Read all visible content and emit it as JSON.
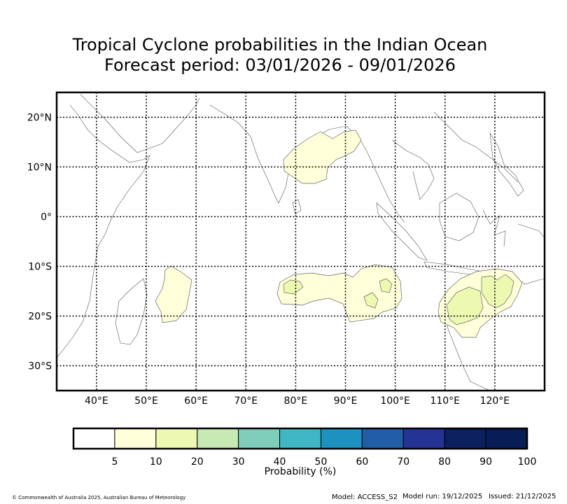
{
  "title": {
    "line1": "Tropical Cyclone probabilities in the Indian Ocean",
    "line2": "Forecast period: 03/01/2026 - 09/01/2026"
  },
  "map": {
    "lon_range": [
      32,
      130
    ],
    "lat_range": [
      -35,
      25
    ],
    "lon_ticks": [
      "40°E",
      "50°E",
      "60°E",
      "70°E",
      "80°E",
      "90°E",
      "100°E",
      "110°E",
      "120°E"
    ],
    "lat_ticks": [
      "20°N",
      "10°N",
      "0°",
      "10°S",
      "20°S",
      "30°S"
    ],
    "grid": "dotted",
    "probability_areas": [
      {
        "region": "Bay of Bengal",
        "level": "5-10"
      },
      {
        "region": "South-west Indian Ocean (east of Madagascar)",
        "level": "5-10"
      },
      {
        "region": "Central south Indian Ocean",
        "level": "5-10"
      },
      {
        "region": "Central south Indian Ocean (embedded)",
        "level": "10-20"
      },
      {
        "region": "Off north-west Australia",
        "level": "5-10"
      },
      {
        "region": "Off north-west Australia (embedded)",
        "level": "10-20"
      }
    ]
  },
  "colorbar": {
    "label": "Probability (%)",
    "tick_labels": [
      "5",
      "10",
      "20",
      "30",
      "40",
      "50",
      "60",
      "70",
      "80",
      "90",
      "100"
    ],
    "colors": [
      "#ffffff",
      "#ffffd9",
      "#edf8b1",
      "#c7e9b4",
      "#7fcdbb",
      "#41b6c4",
      "#1d91c0",
      "#225ea8",
      "#253494",
      "#0c1f5e",
      "#081d58"
    ]
  },
  "fill_colors": {
    "p5": "#ffffd9",
    "p10": "#edf8b1"
  },
  "footer": {
    "copyright": "© Commonwealth of Australia 2025, Australian Bureau of Meteorology",
    "model": "Model: ACCESS_S2",
    "model_run": "Model run: 19/12/2025",
    "issued": "Issued: 21/12/2025"
  }
}
